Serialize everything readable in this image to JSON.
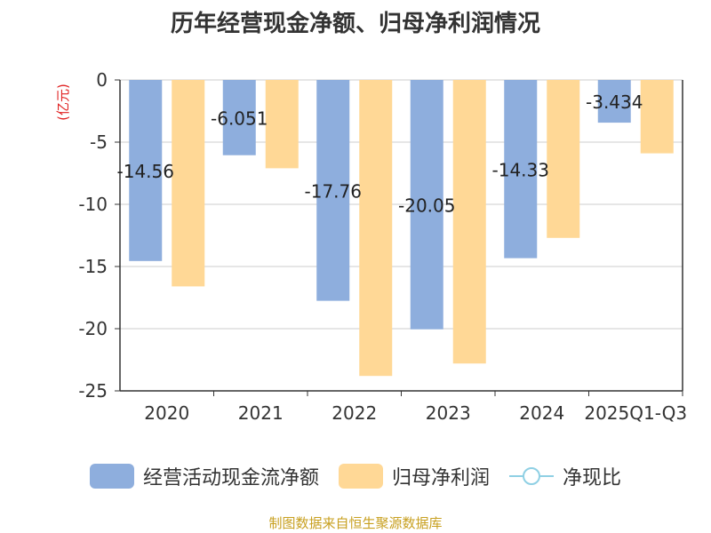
{
  "title": "历年经营现金净额、归母净利润情况",
  "source": "制图数据来自恒生聚源数据库",
  "colors": {
    "cash": "#8eaedd",
    "profit": "#ffd896",
    "ratio": "#8fd0e4",
    "ylabel": "#e02020"
  },
  "legend": [
    {
      "label": "经营活动现金流净额",
      "kind": "bar",
      "color": "#8eaedd"
    },
    {
      "label": "归母净利润",
      "kind": "bar",
      "color": "#ffd896"
    },
    {
      "label": "净现比",
      "kind": "line",
      "color": "#8fd0e4"
    }
  ],
  "chart_data": {
    "type": "bar",
    "categories": [
      "2020",
      "2021",
      "2022",
      "2023",
      "2024",
      "2025Q1-Q3"
    ],
    "series": [
      {
        "name": "经营活动现金流净额",
        "values": [
          -14.56,
          -6.051,
          -17.76,
          -20.05,
          -14.33,
          -3.434
        ],
        "labels": [
          "-14.56",
          "-6.051",
          "-17.76",
          "-20.05",
          "-14.33",
          "-3.434"
        ]
      },
      {
        "name": "归母净利润",
        "values": [
          -16.6,
          -7.1,
          -23.8,
          -22.8,
          -12.7,
          -5.9
        ]
      }
    ],
    "ylabel": "(亿元)",
    "ylim": [
      -25,
      0
    ],
    "yticks": [
      0,
      -5,
      -10,
      -15,
      -20,
      -25
    ],
    "grid": true
  }
}
